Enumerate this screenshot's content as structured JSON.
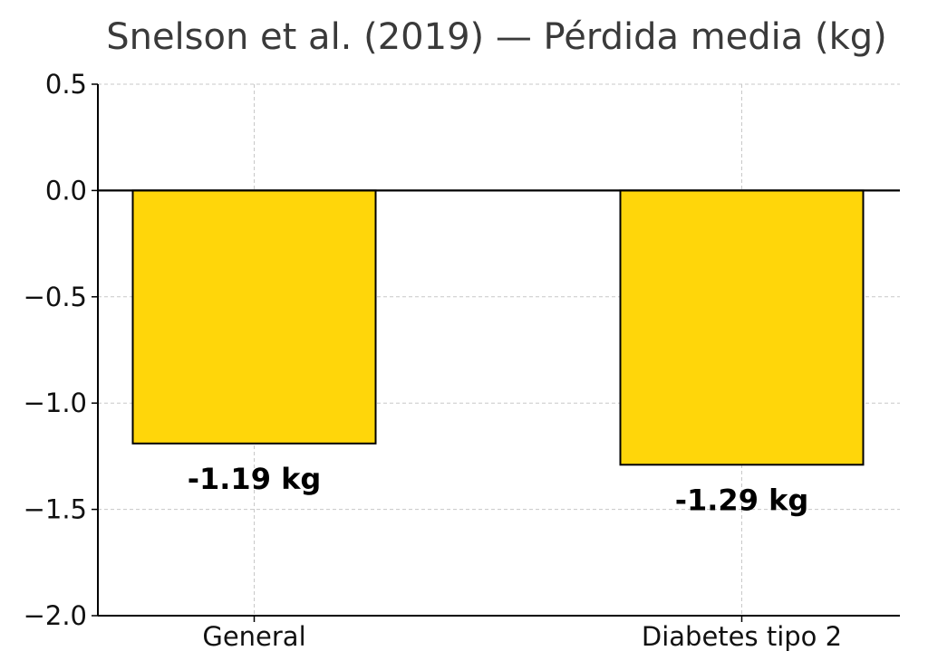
{
  "chart_data": {
    "type": "bar",
    "title": "Snelson et al. (2019) — Pérdida media (kg)",
    "xlabel": "",
    "ylabel": "",
    "categories": [
      "General",
      "Diabetes tipo 2"
    ],
    "values": [
      -1.19,
      -1.29
    ],
    "data_labels": [
      "-1.19 kg",
      "-1.29 kg"
    ],
    "ylim": [
      -2.0,
      0.5
    ],
    "yticks": [
      0.5,
      0.0,
      -0.5,
      -1.0,
      -1.5,
      -2.0
    ],
    "ytick_labels": [
      "0.5",
      "0.0",
      "−0.5",
      "−1.0",
      "−1.5",
      "−2.0"
    ],
    "grid": true,
    "bar_color": "#FFD60A",
    "edge_color": "#000000"
  }
}
